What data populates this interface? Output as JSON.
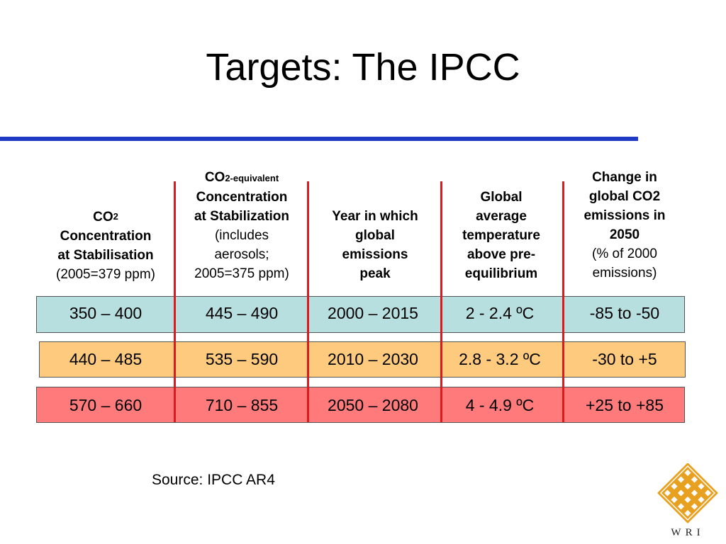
{
  "title": "Targets: The IPCC",
  "headers": {
    "col1": {
      "co2": "CO",
      "sub": "2",
      "line2": "Concentration",
      "line3": "at Stabilisation",
      "note": "(2005=379 ppm)"
    },
    "col2": {
      "co2": "CO",
      "sub": "2-equivalent",
      "line2": "Concentration",
      "line3": "at Stabilization",
      "note1": "(includes",
      "note2": "aerosols;",
      "note3": "2005=375 ppm)"
    },
    "col3": {
      "line1": "Year in which",
      "line2": "global",
      "line3": "emissions",
      "line4": "peak"
    },
    "col4": {
      "line1": "Global",
      "line2": "average",
      "line3": "temperature",
      "line4": "above pre-",
      "line5": "equilibrium"
    },
    "col5": {
      "line1": "Change in",
      "line2": "global CO2",
      "line3": "emissions in",
      "line4": "2050",
      "note1": "(% of 2000",
      "note2": "emissions)"
    }
  },
  "rows": [
    {
      "color": "#b7dfe0",
      "cells": [
        "350 – 400",
        "445 – 490",
        "2000 – 2015",
        "2 - 2.4 ºC",
        "-85 to -50"
      ]
    },
    {
      "color": "#fdca7e",
      "cells": [
        "440 – 485",
        "535 – 590",
        "2010 – 2030",
        "2.8 - 3.2 ºC",
        "-30 to +5"
      ]
    },
    {
      "color": "#ff7b7b",
      "cells": [
        "570 – 660",
        "710 – 855",
        "2050 – 2080",
        "4 - 4.9 ºC",
        "+25 to +85"
      ]
    }
  ],
  "source": "Source: IPCC AR4",
  "logo": {
    "text": "WRI",
    "icon": "wri-knot-logo-icon",
    "color": "#e8a020"
  }
}
